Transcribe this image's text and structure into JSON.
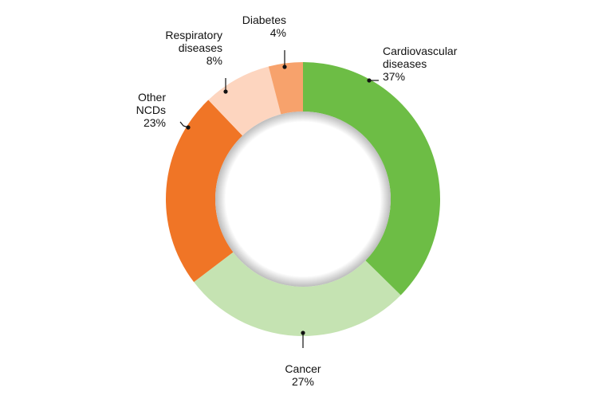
{
  "chart_data": {
    "type": "pie",
    "donut": true,
    "title": "",
    "slices": [
      {
        "name": "Cardiovascular diseases",
        "label_lines": [
          "Cardiovascular",
          "diseases"
        ],
        "value": 37,
        "value_label": "37%",
        "color": "#6dbd45"
      },
      {
        "name": "Cancer",
        "label_lines": [
          "Cancer"
        ],
        "value": 27,
        "value_label": "27%",
        "color": "#c5e3b2"
      },
      {
        "name": "Other NCDs",
        "label_lines": [
          "Other",
          "NCDs"
        ],
        "value": 23,
        "value_label": "23%",
        "color": "#f07526"
      },
      {
        "name": "Respiratory diseases",
        "label_lines": [
          "Respiratory",
          "diseases"
        ],
        "value": 8,
        "value_label": "8%",
        "color": "#fdd5bf"
      },
      {
        "name": "Diabetes",
        "label_lines": [
          "Diabetes"
        ],
        "value": 4,
        "value_label": "4%",
        "color": "#f7a26c"
      }
    ],
    "start": "top",
    "direction": "clockwise",
    "legend": "none"
  }
}
